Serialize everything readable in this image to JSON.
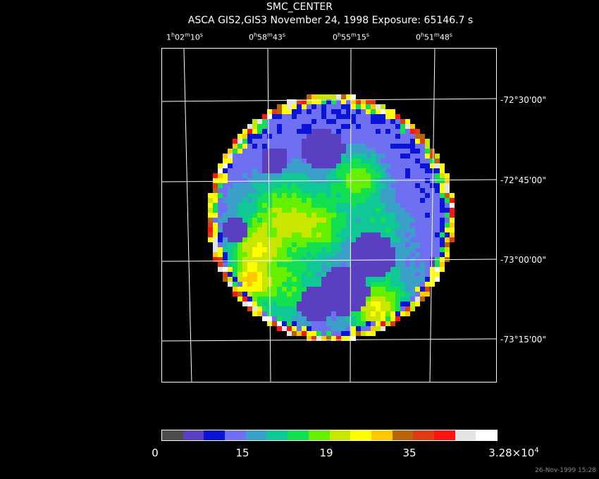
{
  "title": "SMC_CENTER",
  "subtitle": "ASCA GIS2,GIS3 November 24, 1998 Exposure: 65146.7 s",
  "ra_ticks": [
    {
      "h": "1",
      "m": "02",
      "s": "10"
    },
    {
      "h": "0",
      "m": "58",
      "s": "43"
    },
    {
      "h": "0",
      "m": "55",
      "s": "15"
    },
    {
      "h": "0",
      "m": "51",
      "s": "48"
    }
  ],
  "dec_ticks": [
    "-72°30'00\"",
    "-72°45'00\"",
    "-73°00'00\"",
    "-73°15'00\""
  ],
  "colorbar": {
    "colors": [
      "#4d4d4d",
      "#5a3fc0",
      "#0a14d8",
      "#6f6ff2",
      "#3aa0c8",
      "#10c896",
      "#12e050",
      "#66f000",
      "#c8e600",
      "#ffff00",
      "#ffc800",
      "#b8640a",
      "#e03c14",
      "#ff1414",
      "#e4e4e4",
      "#ffffff"
    ],
    "labels": [
      {
        "text": "0"
      },
      {
        "text": "15"
      },
      {
        "text": "19"
      },
      {
        "text": "35"
      },
      {
        "mantissa": "3.28×10",
        "exp": "4"
      }
    ]
  },
  "timestamp": "26-Nov-1999 15:28"
}
